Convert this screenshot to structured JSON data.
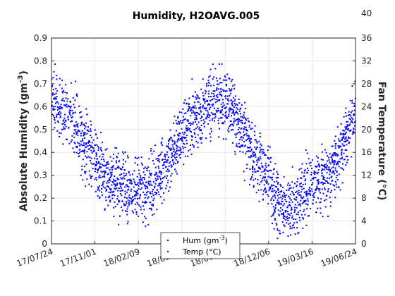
{
  "chart_data": {
    "type": "scatter",
    "title": "Humidity, H2OAVG.005",
    "ylabel_left": "Absolute Humidity (gm",
    "ylabel_left_sup": "-3",
    "ylabel_left_tail": ")",
    "ylabel_right": "Fan Temperature (°C)",
    "x_ticks": [
      "17/07/24",
      "17/11/01",
      "18/02/09",
      "18/05/20",
      "18/08/28",
      "18/12/06",
      "19/03/16",
      "19/06/24"
    ],
    "y_left_ticks": [
      "0",
      "0.1",
      "0.2",
      "0.3",
      "0.4",
      "0.5",
      "0.6",
      "0.7",
      "0.8",
      "0.9"
    ],
    "y_left_range": [
      0,
      0.9
    ],
    "y_right_ticks": [
      "0",
      "4",
      "8",
      "12",
      "16",
      "20",
      "24",
      "28",
      "32",
      "36"
    ],
    "y_right_range": [
      0,
      36
    ],
    "right_axis_top_label": "40",
    "grid": true,
    "legend_position": "bottom-center",
    "series_style": {
      "color": "#0000ff",
      "marker": "point"
    },
    "legend": {
      "hum_main": "Hum (gm",
      "hum_sup": "-3",
      "hum_tail": ")",
      "temp": "Temp (°C)"
    },
    "series": [
      {
        "name": "Hum",
        "x": [
          "2017-07-24",
          "2017-08-10",
          "2017-09-01",
          "2017-09-20",
          "2017-10-10",
          "2017-11-01",
          "2017-11-20",
          "2017-12-10",
          "2018-01-01",
          "2018-01-20",
          "2018-02-09",
          "2018-03-01",
          "2018-03-20",
          "2018-04-10",
          "2018-04-30",
          "2018-05-20",
          "2018-06-10",
          "2018-06-30",
          "2018-07-20",
          "2018-08-10",
          "2018-08-28",
          "2018-09-15",
          "2018-10-05",
          "2018-10-25",
          "2018-11-15",
          "2018-12-06",
          "2018-12-25",
          "2019-01-15",
          "2019-02-05",
          "2019-02-25",
          "2019-03-16",
          "2019-04-05",
          "2019-04-25",
          "2019-05-15",
          "2019-06-05",
          "2019-06-24"
        ],
        "y": [
          0.62,
          0.6,
          0.56,
          0.52,
          0.46,
          0.4,
          0.33,
          0.29,
          0.26,
          0.24,
          0.23,
          0.25,
          0.28,
          0.33,
          0.4,
          0.46,
          0.52,
          0.56,
          0.6,
          0.62,
          0.63,
          0.57,
          0.48,
          0.42,
          0.36,
          0.28,
          0.2,
          0.14,
          0.18,
          0.22,
          0.25,
          0.28,
          0.32,
          0.37,
          0.47,
          0.58
        ]
      },
      {
        "name": "Temp",
        "x": [
          "2017-07-24",
          "2017-08-10",
          "2017-09-01",
          "2017-09-20",
          "2017-10-10",
          "2017-11-01",
          "2017-11-20",
          "2017-12-10",
          "2018-01-01",
          "2018-01-20",
          "2018-02-09",
          "2018-03-01",
          "2018-03-20",
          "2018-04-10",
          "2018-04-30",
          "2018-05-20",
          "2018-06-10",
          "2018-06-30",
          "2018-07-20",
          "2018-08-10",
          "2018-08-28",
          "2018-09-15",
          "2018-10-05",
          "2018-10-25",
          "2018-11-15",
          "2018-12-06",
          "2018-12-25",
          "2019-01-15",
          "2019-02-05",
          "2019-02-25",
          "2019-03-16",
          "2019-04-05",
          "2019-04-25",
          "2019-05-15",
          "2019-06-05",
          "2019-06-24"
        ],
        "y": [
          26.0,
          23.5,
          21.0,
          19.0,
          16.0,
          13.5,
          11.5,
          10.5,
          9.8,
          9.5,
          9.5,
          10.0,
          11.5,
          13.5,
          16.5,
          19.0,
          21.5,
          23.0,
          24.5,
          25.5,
          25.5,
          23.0,
          19.5,
          16.5,
          13.5,
          11.0,
          8.0,
          6.0,
          7.5,
          9.0,
          10.5,
          11.5,
          13.0,
          15.0,
          19.5,
          24.5
        ]
      }
    ]
  }
}
